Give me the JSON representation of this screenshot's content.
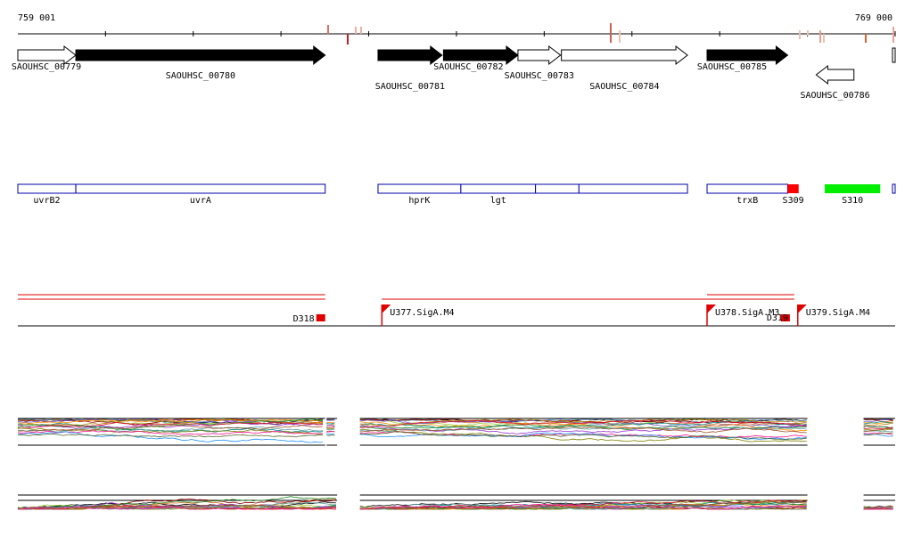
{
  "ruler": {
    "start_label": "759 001",
    "end_label": "769 000",
    "start_bp": 759001,
    "end_bp": 769000
  },
  "genes": [
    {
      "id": "SAOUHSC_00779",
      "start": 759001,
      "end": 759661,
      "strand": "+",
      "filled": false,
      "label_row": 1
    },
    {
      "id": "SAOUHSC_00780",
      "start": 759662,
      "end": 762504,
      "strand": "+",
      "filled": true,
      "label_row": 2
    },
    {
      "id": "SAOUHSC_00781",
      "start": 763106,
      "end": 763836,
      "strand": "+",
      "filled": true,
      "label_row": 3
    },
    {
      "id": "SAOUHSC_00782",
      "start": 763852,
      "end": 764701,
      "strand": "+",
      "filled": true,
      "label_row": 1
    },
    {
      "id": "SAOUHSC_00783",
      "start": 764701,
      "end": 765186,
      "strand": "+",
      "filled": false,
      "label_row": 2
    },
    {
      "id": "SAOUHSC_00784",
      "start": 765196,
      "end": 766633,
      "strand": "+",
      "filled": false,
      "label_row": 3
    },
    {
      "id": "SAOUHSC_00785",
      "start": 766856,
      "end": 767775,
      "strand": "+",
      "filled": true,
      "label_row": 1
    },
    {
      "id": "SAOUHSC_00786",
      "start": 768100,
      "end": 768530,
      "strand": "-",
      "filled": false,
      "label_row": 4
    }
  ],
  "regions": {
    "segments": [
      {
        "name": "uvrB2",
        "start": 759001,
        "end": 759661
      },
      {
        "name": "uvrA",
        "start": 759662,
        "end": 762504
      },
      {
        "name": "hprK",
        "start": 763106,
        "end": 764050
      },
      {
        "name": "lgt",
        "start": 764050,
        "end": 764901
      },
      {
        "name": "",
        "start": 764901,
        "end": 765396
      },
      {
        "name": "",
        "start": 765396,
        "end": 766633
      },
      {
        "name": "trxB",
        "start": 766856,
        "end": 767775
      }
    ],
    "features": [
      {
        "name": "S309",
        "start": 767775,
        "end": 767900,
        "color": "#ff0000"
      },
      {
        "name": "S310",
        "start": 768198,
        "end": 768830,
        "color": "#00ee00"
      }
    ]
  },
  "transcription": {
    "units": [
      {
        "name": "",
        "start": 759001,
        "end": 762504
      },
      {
        "name": "U377.SigA.M4",
        "start": 763150,
        "end": 767850
      },
      {
        "name": "U378.SigA.M3",
        "start": 766856,
        "end": 767850
      },
      {
        "name": "U379.SigA.M4",
        "start": 767890,
        "end": 769000
      }
    ],
    "down_markers": [
      {
        "name": "D318",
        "pos": 762504
      },
      {
        "name": "D319",
        "pos": 767800
      }
    ]
  },
  "profiles": {
    "colors": [
      "#2e8b57",
      "#9acd32",
      "#d2691e",
      "#4682b4",
      "#8b0000",
      "#6a5acd",
      "#ff8c00",
      "#008b8b",
      "#b8860b",
      "#9932cc",
      "#228b22",
      "#dc143c",
      "#808000",
      "#5f9ea0",
      "#a0522d",
      "#ff1493",
      "#1e90ff",
      "#556b2f"
    ],
    "top_panel_segments": [
      {
        "start": 759001,
        "end": 762504
      },
      {
        "start": 762520,
        "end": 762640
      },
      {
        "start": 762900,
        "end": 768000
      },
      {
        "start": 768640,
        "end": 769000
      }
    ],
    "bottom_panel_segments": [
      {
        "start": 759001,
        "end": 762640
      },
      {
        "start": 762900,
        "end": 768000
      },
      {
        "start": 768640,
        "end": 769000
      }
    ]
  }
}
